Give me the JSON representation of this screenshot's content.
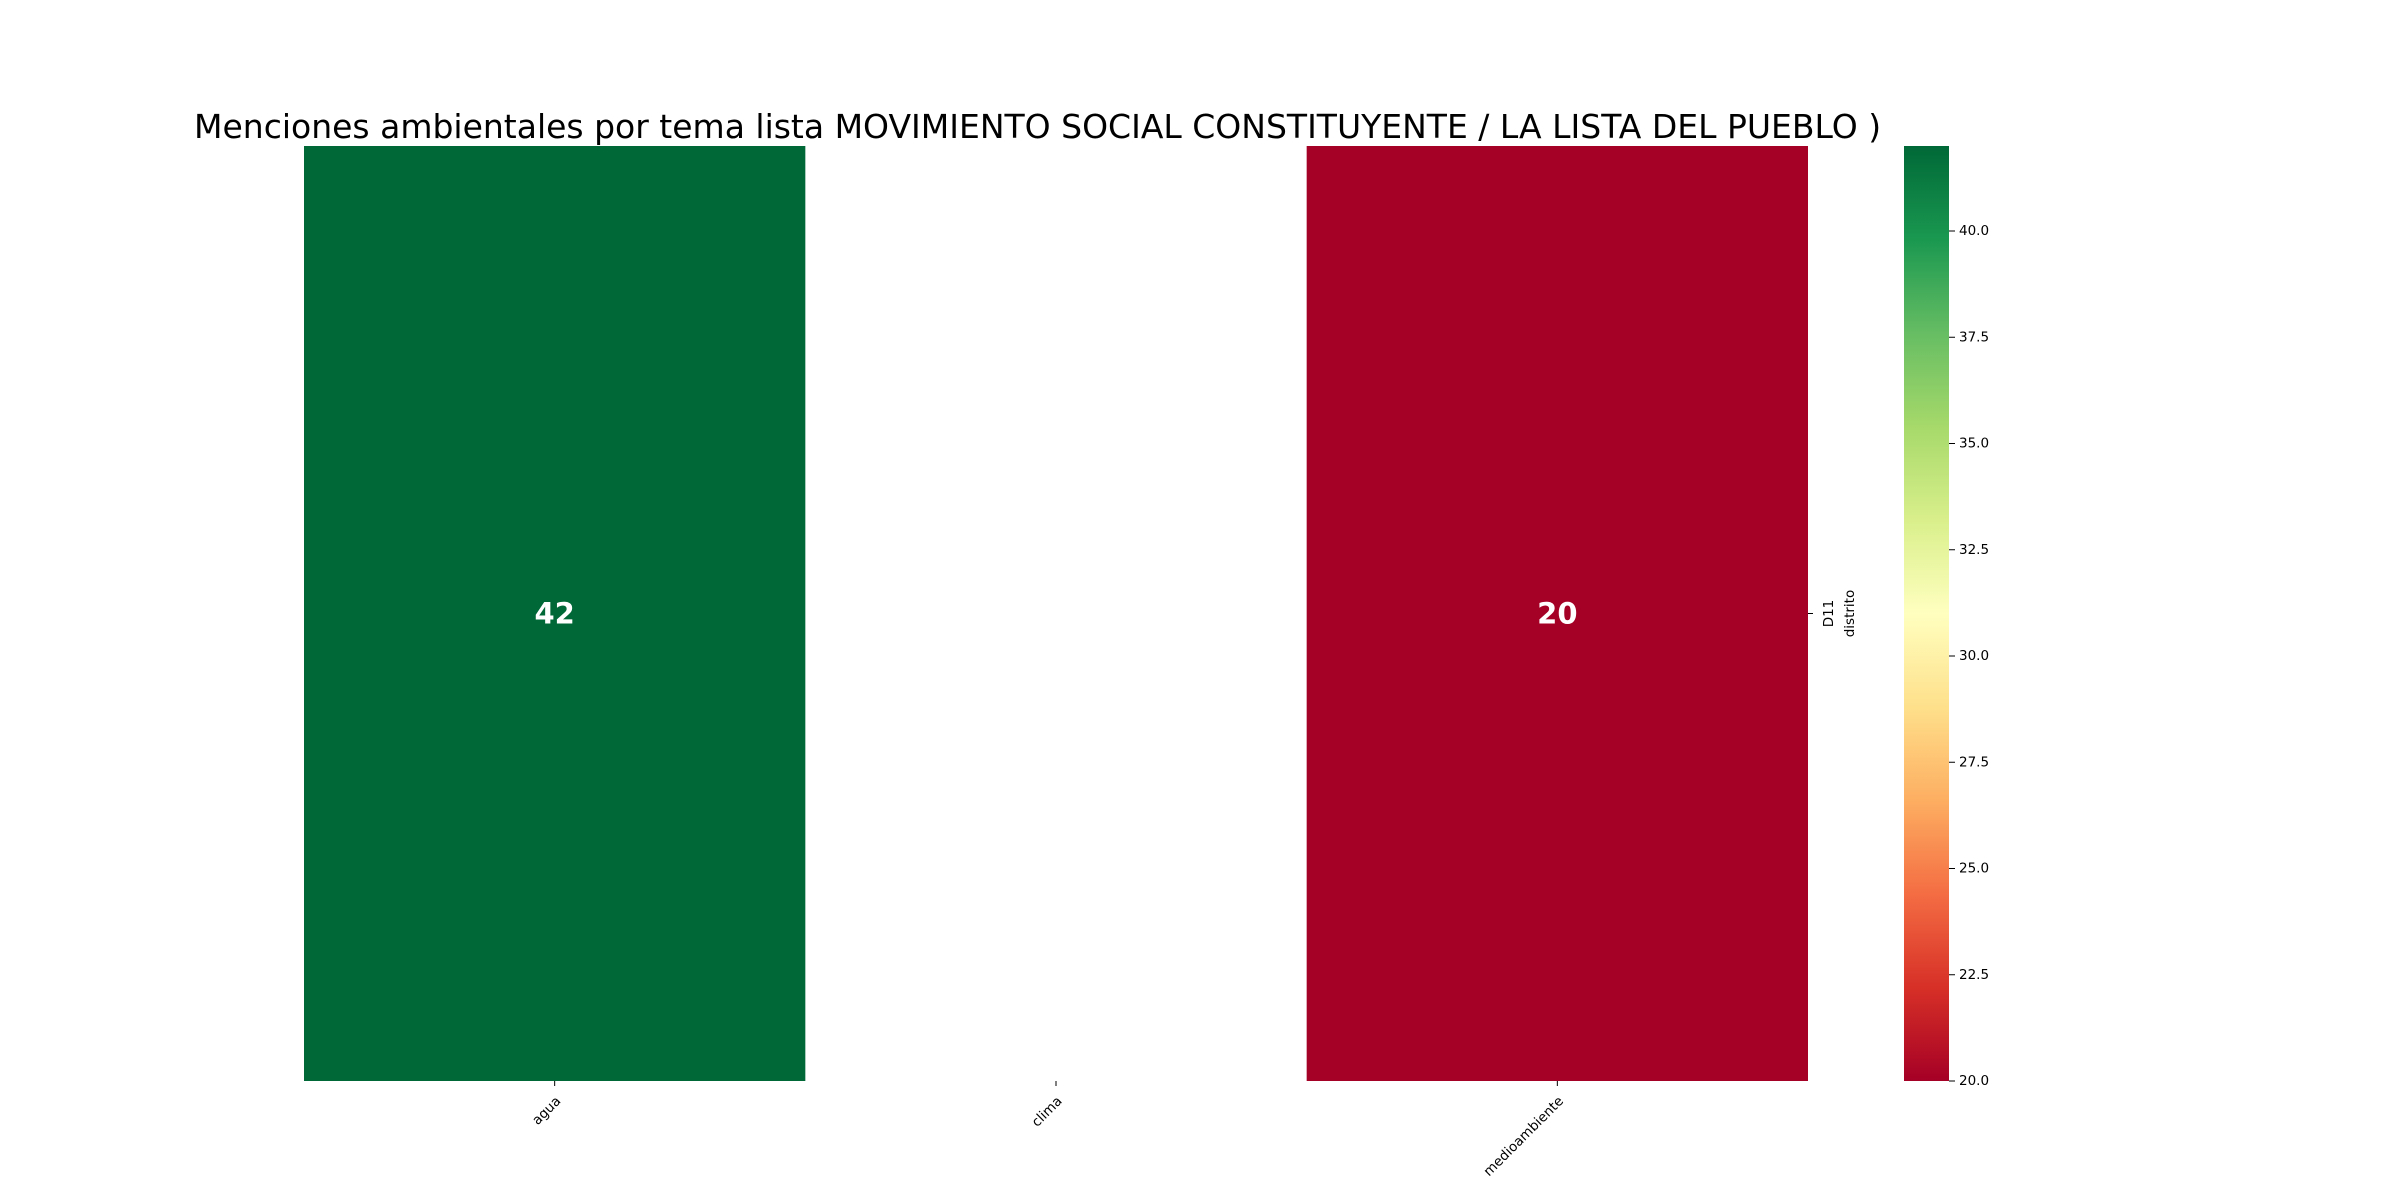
{
  "chart_data": {
    "type": "heatmap",
    "title": "Menciones ambientales por tema lista MOVIMIENTO SOCIAL CONSTITUYENTE / LA LISTA DEL PUEBLO )",
    "x_categories": [
      "agua",
      "clima",
      "medioambiente"
    ],
    "y_categories": [
      "D11"
    ],
    "y_axis_label": "distrito",
    "values": [
      [
        42,
        null,
        20
      ]
    ],
    "colormap": "RdYlGn",
    "color_range": [
      20,
      42
    ],
    "colorbar_ticks": [
      "20.0",
      "22.5",
      "25.0",
      "27.5",
      "30.0",
      "32.5",
      "35.0",
      "37.5",
      "40.0"
    ],
    "annotation_color": "#ffffff",
    "missing_color": "#ffffff"
  }
}
